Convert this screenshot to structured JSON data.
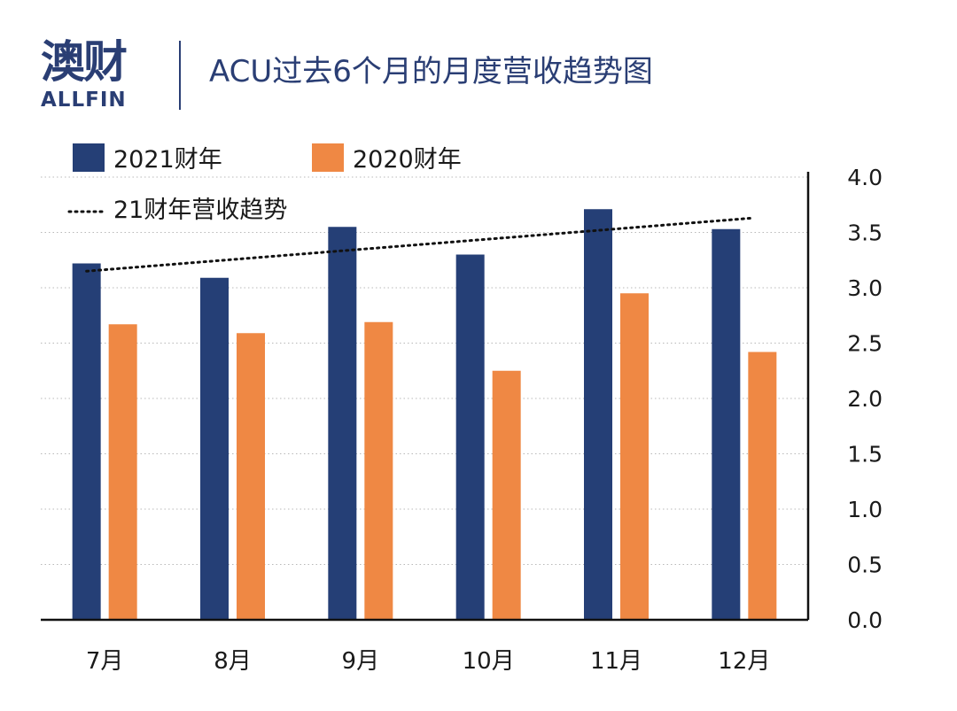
{
  "header": {
    "logo_cn": "澳财",
    "logo_en": "ALLFIN",
    "title": "ACU过去6个月的月度营收趋势图"
  },
  "colors": {
    "series_2021": "#253f76",
    "series_2020": "#ef8844",
    "brand": "#2a3e74",
    "logo_accent": "#c0305a"
  },
  "chart_data": {
    "type": "bar",
    "title": "ACU过去6个月的月度营收趋势图",
    "categories": [
      "7月",
      "8月",
      "9月",
      "10月",
      "11月",
      "12月"
    ],
    "series": [
      {
        "name": "2021财年",
        "values": [
          3.22,
          3.09,
          3.55,
          3.3,
          3.71,
          3.53
        ]
      },
      {
        "name": "2020财年",
        "values": [
          2.67,
          2.59,
          2.69,
          2.25,
          2.95,
          2.42
        ]
      }
    ],
    "trendline": {
      "name": "21财年营收趋势",
      "style": "dotted",
      "start": 3.15,
      "end": 3.63
    },
    "ylim": [
      0,
      4.0
    ],
    "yticks": [
      "0.0",
      "0.5",
      "1.0",
      "1.5",
      "2.0",
      "2.5",
      "3.0",
      "3.5",
      "4.0"
    ],
    "y_axis_side": "right",
    "grid": "dotted horizontal",
    "legend_position": "top-left"
  }
}
